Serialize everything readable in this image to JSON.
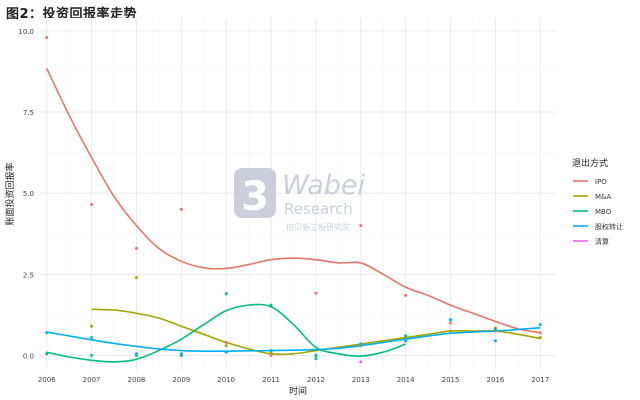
{
  "header": {
    "title": "图2：投资回报率走势"
  },
  "watermark": {
    "logo_symbol": "3",
    "brand": "Wabei",
    "sub": "Research",
    "cn": "挖贝新三板研究院",
    "color": "#c5cad6"
  },
  "chart_data": {
    "type": "line",
    "xlabel": "时间",
    "ylabel": "账面投资回报率",
    "xlim": [
      2005.85,
      2017.35
    ],
    "ylim": [
      -0.45,
      10.4
    ],
    "x_ticks": [
      2006,
      2007,
      2008,
      2009,
      2010,
      2011,
      2012,
      2013,
      2014,
      2015,
      2016,
      2017
    ],
    "y_ticks": [
      0.0,
      2.5,
      5.0,
      7.5,
      10.0
    ],
    "y_tick_labels": [
      "0.0",
      "2.5",
      "5.0",
      "7.5",
      "10.0"
    ],
    "grid": true,
    "legend": {
      "title": "退出方式",
      "position": "right"
    },
    "series": [
      {
        "name": "IPO",
        "color": "#e8746c",
        "points": [
          [
            2006,
            9.8
          ],
          [
            2007,
            4.65
          ],
          [
            2008,
            3.3
          ],
          [
            2009,
            4.5
          ],
          [
            2010,
            0.4
          ],
          [
            2011,
            0.0
          ],
          [
            2012,
            1.92
          ],
          [
            2013,
            4.0
          ],
          [
            2014,
            1.85
          ],
          [
            2015,
            1.0
          ],
          [
            2016,
            0.75
          ],
          [
            2017,
            0.7
          ]
        ],
        "curve": [
          [
            2006,
            8.85
          ],
          [
            2006.5,
            7.4
          ],
          [
            2007,
            6.1
          ],
          [
            2007.5,
            4.9
          ],
          [
            2008,
            4.0
          ],
          [
            2008.5,
            3.3
          ],
          [
            2009,
            2.9
          ],
          [
            2009.5,
            2.7
          ],
          [
            2010,
            2.68
          ],
          [
            2010.5,
            2.8
          ],
          [
            2011,
            2.95
          ],
          [
            2011.5,
            3.0
          ],
          [
            2012,
            2.95
          ],
          [
            2012.5,
            2.85
          ],
          [
            2013,
            2.85
          ],
          [
            2013.5,
            2.5
          ],
          [
            2014,
            2.1
          ],
          [
            2014.5,
            1.85
          ],
          [
            2015,
            1.55
          ],
          [
            2015.5,
            1.3
          ],
          [
            2016,
            1.05
          ],
          [
            2016.5,
            0.82
          ],
          [
            2017,
            0.7
          ]
        ]
      },
      {
        "name": "M&A",
        "color": "#a3a500",
        "points": [
          [
            2007,
            0.9
          ],
          [
            2008,
            2.4
          ],
          [
            2009,
            0.0
          ],
          [
            2010,
            0.3
          ],
          [
            2011,
            0.1
          ],
          [
            2012,
            0.0
          ],
          [
            2013,
            0.3
          ],
          [
            2014,
            0.45
          ],
          [
            2015,
            0.75
          ],
          [
            2016,
            0.85
          ],
          [
            2017,
            0.55
          ]
        ],
        "curve": [
          [
            2007,
            1.42
          ],
          [
            2007.5,
            1.4
          ],
          [
            2008,
            1.3
          ],
          [
            2008.5,
            1.15
          ],
          [
            2009,
            0.9
          ],
          [
            2009.5,
            0.65
          ],
          [
            2010,
            0.4
          ],
          [
            2010.5,
            0.2
          ],
          [
            2011,
            0.05
          ],
          [
            2011.5,
            0.05
          ],
          [
            2012,
            0.15
          ],
          [
            2012.5,
            0.25
          ],
          [
            2013,
            0.35
          ],
          [
            2013.5,
            0.45
          ],
          [
            2014,
            0.55
          ],
          [
            2014.5,
            0.65
          ],
          [
            2015,
            0.75
          ],
          [
            2015.5,
            0.75
          ],
          [
            2016,
            0.75
          ],
          [
            2016.5,
            0.65
          ],
          [
            2017,
            0.52
          ]
        ]
      },
      {
        "name": "MBO",
        "color": "#00bf7d",
        "points": [
          [
            2006,
            0.05
          ],
          [
            2007,
            0.0
          ],
          [
            2008,
            0.0
          ],
          [
            2009,
            0.0
          ],
          [
            2010,
            1.9
          ],
          [
            2011,
            1.55
          ],
          [
            2012,
            0.0
          ],
          [
            2013,
            0.35
          ],
          [
            2014,
            0.6
          ],
          [
            2015,
            1.1
          ],
          [
            2016,
            0.8
          ]
        ],
        "curve": [
          [
            2006,
            0.1
          ],
          [
            2006.5,
            -0.05
          ],
          [
            2007,
            -0.15
          ],
          [
            2007.5,
            -0.2
          ],
          [
            2008,
            -0.12
          ],
          [
            2008.5,
            0.15
          ],
          [
            2009,
            0.5
          ],
          [
            2009.5,
            0.95
          ],
          [
            2010,
            1.38
          ],
          [
            2010.5,
            1.55
          ],
          [
            2011,
            1.5
          ],
          [
            2011.5,
            0.95
          ],
          [
            2012,
            0.25
          ],
          [
            2012.5,
            0.05
          ],
          [
            2013,
            -0.02
          ],
          [
            2013.5,
            0.1
          ],
          [
            2014,
            0.35
          ]
        ]
      },
      {
        "name": "股权转让",
        "color": "#00b0f6",
        "points": [
          [
            2006,
            0.7
          ],
          [
            2007,
            0.55
          ],
          [
            2008,
            0.05
          ],
          [
            2009,
            0.05
          ],
          [
            2010,
            0.1
          ],
          [
            2011,
            0.15
          ],
          [
            2012,
            -0.1
          ],
          [
            2013,
            0.35
          ],
          [
            2014,
            0.45
          ],
          [
            2015,
            1.1
          ],
          [
            2016,
            0.45
          ],
          [
            2017,
            0.95
          ]
        ],
        "curve": [
          [
            2006,
            0.72
          ],
          [
            2006.5,
            0.6
          ],
          [
            2007,
            0.48
          ],
          [
            2007.5,
            0.37
          ],
          [
            2008,
            0.28
          ],
          [
            2008.5,
            0.2
          ],
          [
            2009,
            0.15
          ],
          [
            2009.5,
            0.13
          ],
          [
            2010,
            0.13
          ],
          [
            2010.5,
            0.14
          ],
          [
            2011,
            0.15
          ],
          [
            2011.5,
            0.16
          ],
          [
            2012,
            0.18
          ],
          [
            2012.5,
            0.22
          ],
          [
            2013,
            0.3
          ],
          [
            2013.5,
            0.4
          ],
          [
            2014,
            0.5
          ],
          [
            2014.5,
            0.6
          ],
          [
            2015,
            0.68
          ],
          [
            2015.5,
            0.72
          ],
          [
            2016,
            0.75
          ],
          [
            2016.5,
            0.8
          ],
          [
            2017,
            0.85
          ]
        ]
      },
      {
        "name": "清算",
        "color": "#e76bf3",
        "points": [
          [
            2013,
            -0.2
          ]
        ],
        "curve": []
      }
    ]
  }
}
